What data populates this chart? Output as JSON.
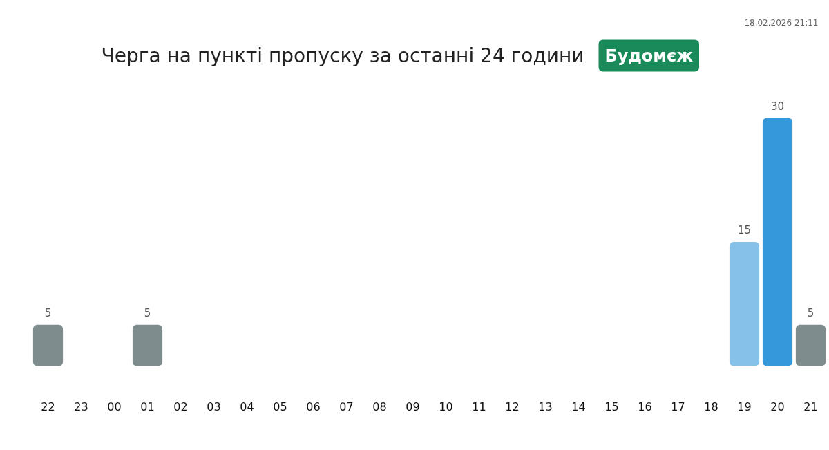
{
  "chart_data": {
    "type": "bar",
    "title": "Черга на пункті пропуску за останні 24 години",
    "subtitle": "Будомєж",
    "annotations": [
      "18.02.2026 21:11"
    ],
    "categories": [
      "22",
      "23",
      "00",
      "01",
      "02",
      "03",
      "04",
      "05",
      "06",
      "07",
      "08",
      "09",
      "10",
      "11",
      "12",
      "13",
      "14",
      "15",
      "16",
      "17",
      "18",
      "19",
      "20",
      "21"
    ],
    "values": [
      5,
      null,
      null,
      5,
      null,
      null,
      null,
      null,
      null,
      null,
      null,
      null,
      null,
      null,
      null,
      null,
      null,
      null,
      null,
      null,
      null,
      15,
      30,
      5
    ],
    "colors": [
      "#7f8c8d",
      null,
      null,
      "#7f8c8d",
      null,
      null,
      null,
      null,
      null,
      null,
      null,
      null,
      null,
      null,
      null,
      null,
      null,
      null,
      null,
      null,
      null,
      "#85c1e9",
      "#3498db",
      "#7f8c8d"
    ],
    "data_labels": true,
    "tick_labels": "x",
    "grid": false
  }
}
